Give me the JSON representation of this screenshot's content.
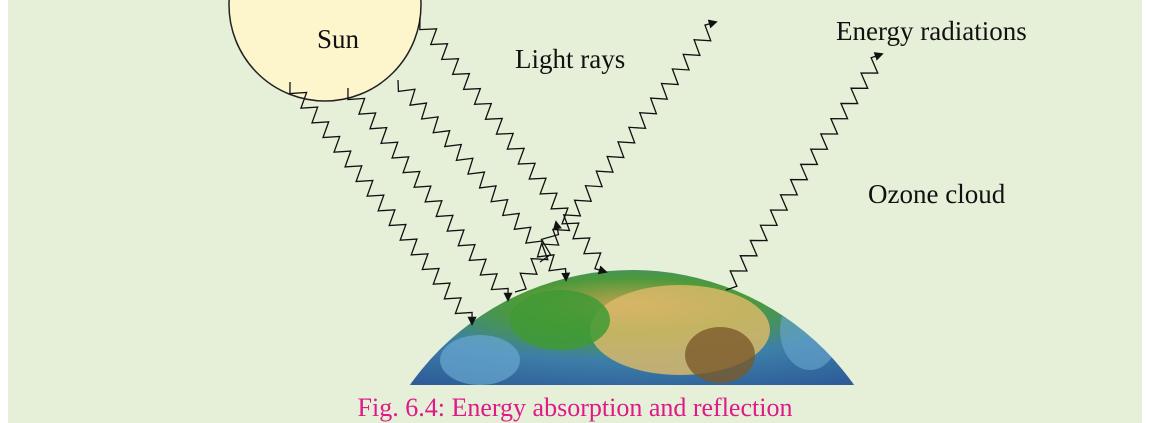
{
  "labels": {
    "sun": "Sun",
    "light_rays": "Light rays",
    "energy_radiations": "Energy radiations",
    "ozone_cloud": "Ozone cloud"
  },
  "caption": "Fig. 6.4: Energy absorption and reflection"
}
